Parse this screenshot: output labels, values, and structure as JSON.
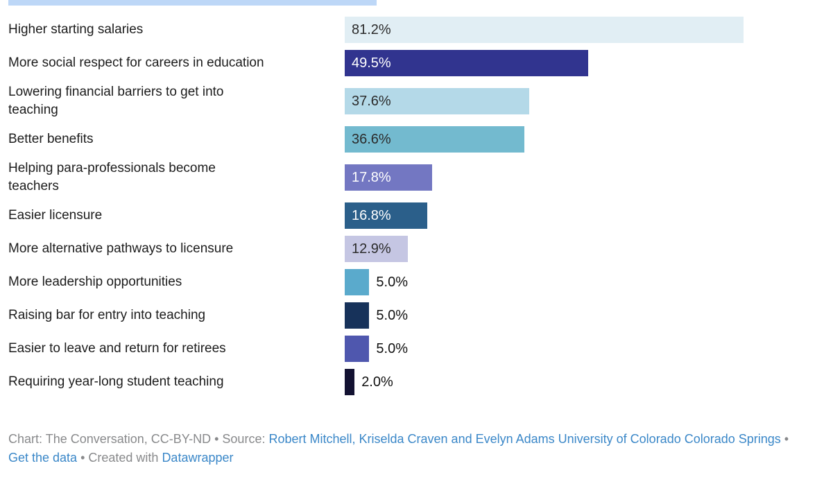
{
  "page": {
    "background": "#ffffff",
    "top_strip_color": "#bdd7f7"
  },
  "chart_data": {
    "type": "bar",
    "orientation": "horizontal",
    "title": "",
    "xlabel": "",
    "ylabel": "",
    "xlim": [
      0,
      81.2
    ],
    "grid": false,
    "legend": false,
    "categories": [
      "Higher starting salaries",
      "More social respect for careers in education",
      "Lowering financial barriers to get into\nteaching",
      "Better benefits",
      "Helping para-professionals become\nteachers",
      "Easier licensure",
      "More alternative pathways to licensure",
      "More leadership opportunities",
      "Raising bar for entry into teaching",
      "Easier to leave and return for retirees",
      "Requiring year-long student teaching"
    ],
    "values": [
      81.2,
      49.5,
      37.6,
      36.6,
      17.8,
      16.8,
      12.9,
      5.0,
      5.0,
      5.0,
      2.0
    ],
    "value_labels": [
      "81.2%",
      "49.5%",
      "37.6%",
      "36.6%",
      "17.8%",
      "16.8%",
      "12.9%",
      "5.0%",
      "5.0%",
      "5.0%",
      "2.0%"
    ],
    "bar_colors": [
      "#e1eef4",
      "#31348f",
      "#b4d9e8",
      "#73bacf",
      "#7377c2",
      "#2b5f8a",
      "#c5c6e3",
      "#5aaacc",
      "#17325a",
      "#4f57ae",
      "#131232"
    ],
    "value_label_colors": [
      "#2b2b2b",
      "#ffffff",
      "#2b2b2b",
      "#2b2b2b",
      "#ffffff",
      "#ffffff",
      "#2b2b2b",
      "#111111",
      "#111111",
      "#111111",
      "#111111"
    ],
    "value_label_inside": [
      true,
      true,
      true,
      true,
      true,
      true,
      true,
      false,
      false,
      false,
      false
    ]
  },
  "footer": {
    "credit": "Chart: The Conversation, CC-BY-ND • Source: ",
    "source_link": "Robert Mitchell, Kriselda Craven and Evelyn Adams University of Colorado Colorado Springs",
    "sep": " • ",
    "get_data": "Get the data",
    "created_with": " • Created with ",
    "datawrapper": "Datawrapper",
    "text_color": "#88898b",
    "link_color": "#3a87c8"
  }
}
